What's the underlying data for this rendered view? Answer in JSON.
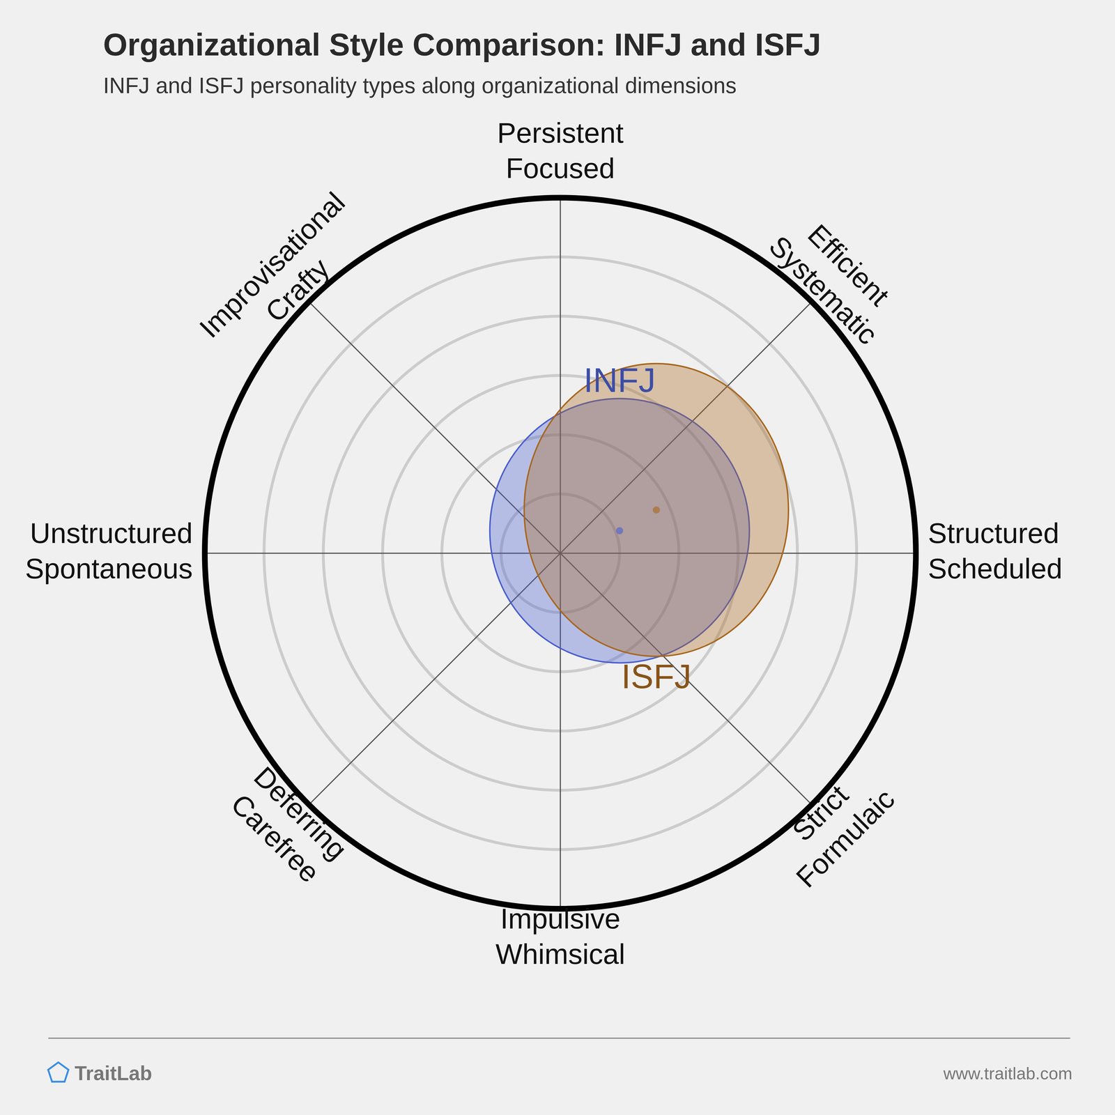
{
  "chart_data": {
    "type": "radar_bubble",
    "title": "Organizational Style Comparison: INFJ and ISFJ",
    "subtitle": "INFJ and ISFJ personality types along organizational dimensions",
    "categories": [
      [
        "Persistent",
        "Focused"
      ],
      [
        "Efficient",
        "Systematic"
      ],
      [
        "Structured",
        "Scheduled"
      ],
      [
        "Strict",
        "Formulaic"
      ],
      [
        "Impulsive",
        "Whimsical"
      ],
      [
        "Deferring",
        "Carefree"
      ],
      [
        "Unstructured",
        "Spontaneous"
      ],
      [
        "Improvisational",
        "Crafty"
      ]
    ],
    "series": [
      {
        "name": "INFJ",
        "color": "#4a5fd0",
        "x": 1.0,
        "y": 0.38,
        "rx": 2.19,
        "ry": 2.23
      },
      {
        "name": "ISFJ",
        "color": "#a8671e",
        "x": 1.62,
        "y": 0.73,
        "rx": 2.23,
        "ry": 2.47
      }
    ],
    "xlim": [
      -6,
      6
    ],
    "ylim": [
      -6,
      6
    ],
    "yticks": [
      1,
      2,
      3,
      4,
      5
    ],
    "grid": true,
    "tick_labels": false,
    "brand": "TraitLab",
    "url": "www.traitlab.com"
  }
}
